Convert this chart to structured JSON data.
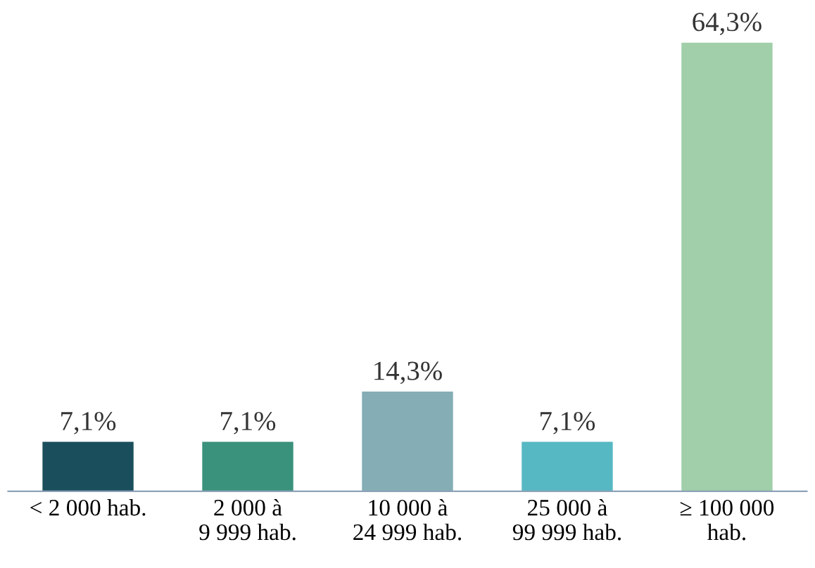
{
  "chart_data": {
    "type": "bar",
    "categories": [
      "< 2 000 hab.",
      "2 000 à\n9 999 hab.",
      "10 000 à\n24 999 hab.",
      "25 000 à\n99 999 hab.",
      "≥ 100 000\nhab."
    ],
    "values": [
      7.1,
      7.1,
      14.3,
      7.1,
      64.3
    ],
    "colors": [
      "#1b4e5d",
      "#3a917c",
      "#84adb5",
      "#55b8c2",
      "#a0cfa9"
    ],
    "value_labels": [
      "7,1%",
      "7,1%",
      "14,3%",
      "7,1%",
      "64,3%"
    ],
    "grid": false,
    "legend": false
  }
}
